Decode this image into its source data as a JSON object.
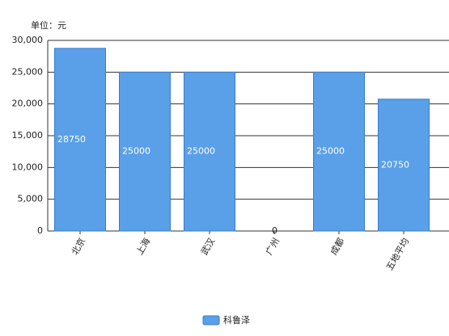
{
  "chart_data": {
    "type": "bar",
    "y_axis_label": "单位：元",
    "categories": [
      "北京",
      "上海",
      "武汉",
      "广州",
      "成都",
      "五地平均"
    ],
    "series": [
      {
        "name": "科鲁泽",
        "color": "#5aa0e8",
        "values": [
          28750,
          25000,
          25000,
          0,
          25000,
          20750
        ]
      }
    ],
    "ylim": [
      0,
      30000
    ],
    "yticks": [
      0,
      {
        "value": 5000,
        "label": "5,000"
      },
      {
        "value": 10000,
        "label": "10,000"
      },
      {
        "value": 15000,
        "label": "15,000"
      },
      {
        "value": 20000,
        "label": "20,000"
      },
      {
        "value": 25000,
        "label": "25,000"
      },
      {
        "value": 30000,
        "label": "30,000"
      }
    ],
    "grid": true,
    "legend": "bottom"
  }
}
